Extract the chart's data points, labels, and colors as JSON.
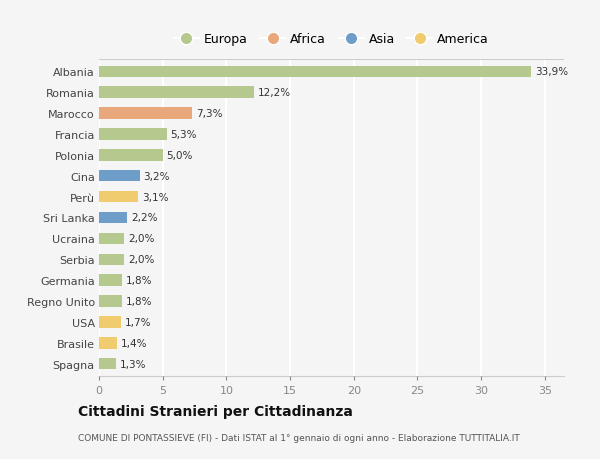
{
  "categories": [
    "Albania",
    "Romania",
    "Marocco",
    "Francia",
    "Polonia",
    "Cina",
    "Perù",
    "Sri Lanka",
    "Ucraina",
    "Serbia",
    "Germania",
    "Regno Unito",
    "USA",
    "Brasile",
    "Spagna"
  ],
  "values": [
    33.9,
    12.2,
    7.3,
    5.3,
    5.0,
    3.2,
    3.1,
    2.2,
    2.0,
    2.0,
    1.8,
    1.8,
    1.7,
    1.4,
    1.3
  ],
  "labels": [
    "33,9%",
    "12,2%",
    "7,3%",
    "5,3%",
    "5,0%",
    "3,2%",
    "3,1%",
    "2,2%",
    "2,0%",
    "2,0%",
    "1,8%",
    "1,8%",
    "1,7%",
    "1,4%",
    "1,3%"
  ],
  "colors": [
    "#b5c98e",
    "#b5c98e",
    "#e8a87c",
    "#b5c98e",
    "#b5c98e",
    "#6e9dc9",
    "#f0cc6e",
    "#6e9dc9",
    "#b5c98e",
    "#b5c98e",
    "#b5c98e",
    "#b5c98e",
    "#f0cc6e",
    "#f0cc6e",
    "#b5c98e"
  ],
  "legend_labels": [
    "Europa",
    "Africa",
    "Asia",
    "America"
  ],
  "legend_colors": [
    "#b5c98e",
    "#e8a87c",
    "#6e9dc9",
    "#f0cc6e"
  ],
  "title": "Cittadini Stranieri per Cittadinanza",
  "subtitle": "COMUNE DI PONTASSIEVE (FI) - Dati ISTAT al 1° gennaio di ogni anno - Elaborazione TUTTITALIA.IT",
  "xlim": [
    0,
    36.5
  ],
  "xticks": [
    0,
    5,
    10,
    15,
    20,
    25,
    30,
    35
  ],
  "background_color": "#f5f5f5",
  "grid_color": "#ffffff",
  "bar_height": 0.55
}
